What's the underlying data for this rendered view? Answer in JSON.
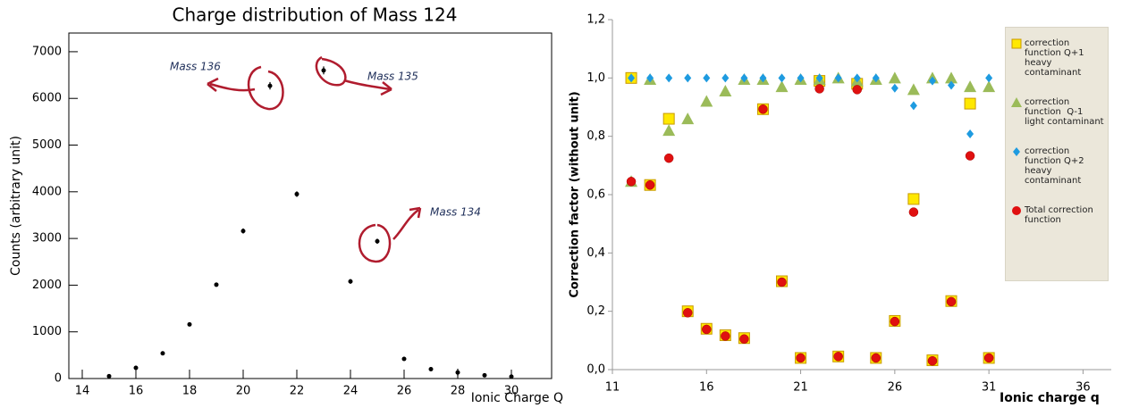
{
  "chart_data": [
    {
      "type": "errorbar",
      "title": "Charge distribution of Mass 124",
      "xlabel": "Ionic Charge Q",
      "ylabel": "Counts (arbitrary unit)",
      "x": [
        15,
        16,
        17,
        18,
        19,
        20,
        21,
        22,
        23,
        24,
        25,
        26,
        27,
        28,
        29,
        30
      ],
      "values": [
        50,
        230,
        540,
        1160,
        2010,
        3160,
        6270,
        3950,
        6600,
        2080,
        2940,
        420,
        200,
        130,
        70,
        40
      ],
      "errors": [
        20,
        25,
        30,
        35,
        45,
        55,
        80,
        60,
        85,
        50,
        55,
        30,
        25,
        80,
        20,
        15
      ],
      "color": "#000000",
      "xlim": [
        13.5,
        31.5
      ],
      "xticks": [
        14,
        16,
        18,
        20,
        22,
        24,
        26,
        28,
        30
      ],
      "ylim": [
        0,
        7400
      ],
      "yticks": [
        0,
        1000,
        2000,
        3000,
        4000,
        5000,
        6000,
        7000
      ],
      "annotations": [
        "Mass 136",
        "Mass 135",
        "Mass 134"
      ],
      "grid": false
    },
    {
      "type": "scatter",
      "xlabel": "Ionic charge q",
      "ylabel": "Correction factor (without unit)",
      "x": [
        12,
        13,
        14,
        15,
        16,
        17,
        18,
        19,
        20,
        21,
        22,
        23,
        24,
        25,
        26,
        27,
        28,
        29,
        30,
        31
      ],
      "series": [
        {
          "name": "correction function Q+1 heavy contaminant",
          "color": "#ffe800",
          "marker": "square",
          "values": [
            1.0,
            0.633,
            0.86,
            0.2,
            0.14,
            0.118,
            0.108,
            0.893,
            0.303,
            0.04,
            0.99,
            0.045,
            0.98,
            0.04,
            0.167,
            0.585,
            0.032,
            0.235,
            0.912,
            0.04
          ]
        },
        {
          "name": "correction function  Q-1 light contaminant",
          "color": "#9bbb59",
          "marker": "triangle",
          "values": [
            0.645,
            0.995,
            0.82,
            0.86,
            0.92,
            0.955,
            0.995,
            0.995,
            0.97,
            0.995,
            0.995,
            1.0,
            0.99,
            0.995,
            1.0,
            0.96,
            1.0,
            1.0,
            0.97,
            0.97
          ]
        },
        {
          "name": "correction function Q+2 heavy contaminant",
          "color": "#1e9be0",
          "marker": "diamond",
          "values": [
            1.0,
            1.0,
            1.0,
            1.0,
            1.0,
            1.0,
            1.0,
            1.0,
            1.0,
            1.0,
            1.0,
            1.0,
            1.0,
            1.0,
            0.965,
            0.905,
            0.99,
            0.975,
            0.808,
            1.0
          ]
        },
        {
          "name": "Total correction function",
          "color": "#e01010",
          "marker": "circle",
          "values": [
            0.645,
            0.633,
            0.725,
            0.195,
            0.138,
            0.115,
            0.105,
            0.893,
            0.3,
            0.04,
            0.963,
            0.045,
            0.96,
            0.04,
            0.165,
            0.54,
            0.03,
            0.233,
            0.733,
            0.04
          ]
        }
      ],
      "xlim": [
        11,
        37.5
      ],
      "xticks": [
        11,
        16,
        21,
        26,
        31,
        36
      ],
      "ylim": [
        0,
        1.2
      ],
      "yticks": [
        {
          "value": 0,
          "label": "0,0"
        },
        {
          "value": 0.2,
          "label": "0,2"
        },
        {
          "value": 0.4,
          "label": "0,4"
        },
        {
          "value": 0.6,
          "label": "0,6"
        },
        {
          "value": 0.8,
          "label": "0,8"
        },
        {
          "value": 1.0,
          "label": "1,0"
        },
        {
          "value": 1.2,
          "label": "1,2"
        }
      ],
      "legend": "right",
      "grid": false
    }
  ]
}
